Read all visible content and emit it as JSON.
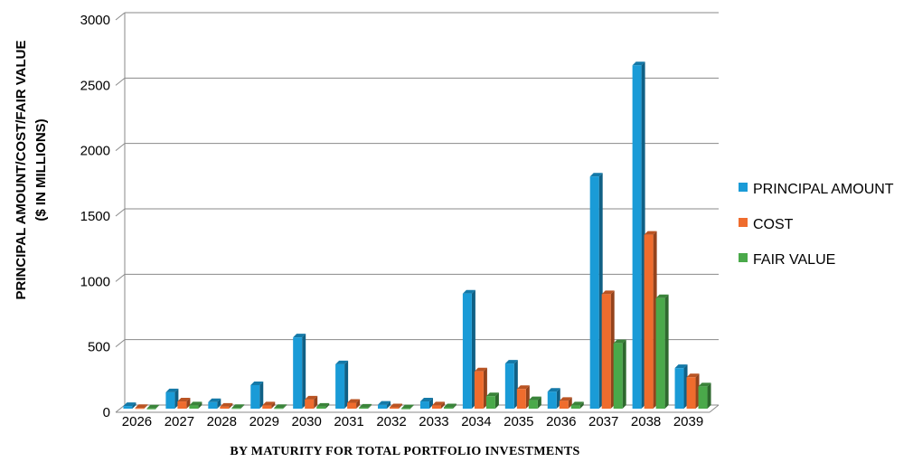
{
  "chart_data": {
    "type": "bar",
    "title": "",
    "ylabel_line1": "PRINCIPAL AMOUNT/COST/FAIR VALUE",
    "ylabel_line2": "($ IN MILLIONS)",
    "xlabel": "BY MATURITY FOR TOTAL PORTFOLIO INVESTMENTS",
    "ylim": [
      0,
      3000
    ],
    "yticks": [
      "0",
      "500",
      "1000",
      "1500",
      "2000",
      "2500",
      "3000"
    ],
    "ytick_values": [
      0,
      500,
      1000,
      1500,
      2000,
      2500,
      3000
    ],
    "grid": true,
    "legend_position": "right",
    "categories": [
      "2026",
      "2027",
      "2028",
      "2029",
      "2030",
      "2031",
      "2032",
      "2033",
      "2034",
      "2035",
      "2036",
      "2037",
      "2038",
      "2039"
    ],
    "series": [
      {
        "name": "PRINCIPAL AMOUNT",
        "color": "#1a9bd7",
        "values": [
          20,
          125,
          50,
          180,
          545,
          340,
          30,
          55,
          880,
          345,
          130,
          1775,
          2625,
          310
        ]
      },
      {
        "name": "COST",
        "color": "#ef6c2d",
        "values": [
          5,
          55,
          15,
          25,
          70,
          45,
          10,
          25,
          285,
          150,
          60,
          875,
          1330,
          240
        ]
      },
      {
        "name": "FAIR VALUE",
        "color": "#4aa94a",
        "values": [
          2,
          25,
          5,
          5,
          15,
          8,
          3,
          10,
          95,
          65,
          25,
          500,
          845,
          170
        ]
      }
    ]
  }
}
